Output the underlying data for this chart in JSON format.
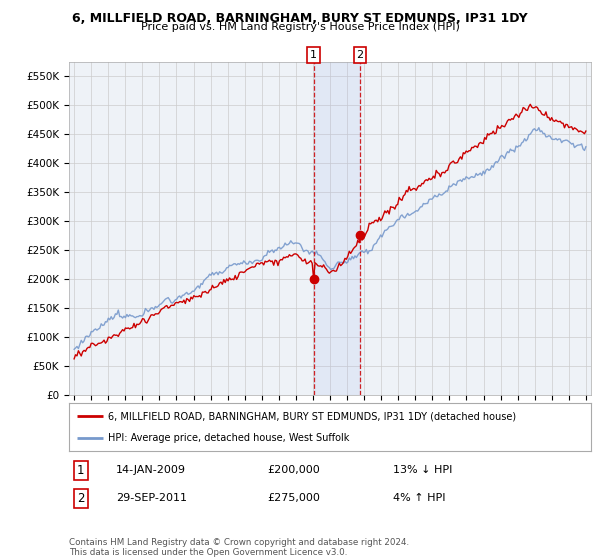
{
  "title": "6, MILLFIELD ROAD, BARNINGHAM, BURY ST EDMUNDS, IP31 1DY",
  "subtitle": "Price paid vs. HM Land Registry's House Price Index (HPI)",
  "legend_red": "6, MILLFIELD ROAD, BARNINGHAM, BURY ST EDMUNDS, IP31 1DY (detached house)",
  "legend_blue": "HPI: Average price, detached house, West Suffolk",
  "transaction1_date": "14-JAN-2009",
  "transaction1_price": "£200,000",
  "transaction1_hpi": "13% ↓ HPI",
  "transaction2_date": "29-SEP-2011",
  "transaction2_price": "£275,000",
  "transaction2_hpi": "4% ↑ HPI",
  "footer": "Contains HM Land Registry data © Crown copyright and database right 2024.\nThis data is licensed under the Open Government Licence v3.0.",
  "ylim": [
    0,
    575000
  ],
  "yticks": [
    0,
    50000,
    100000,
    150000,
    200000,
    250000,
    300000,
    350000,
    400000,
    450000,
    500000,
    550000
  ],
  "red_color": "#cc0000",
  "blue_color": "#7799cc",
  "bg_color": "#eef2f7",
  "grid_color": "#cccccc",
  "transaction1_x": 2009.04,
  "transaction2_x": 2011.75,
  "start_year": 1995,
  "end_year": 2025
}
